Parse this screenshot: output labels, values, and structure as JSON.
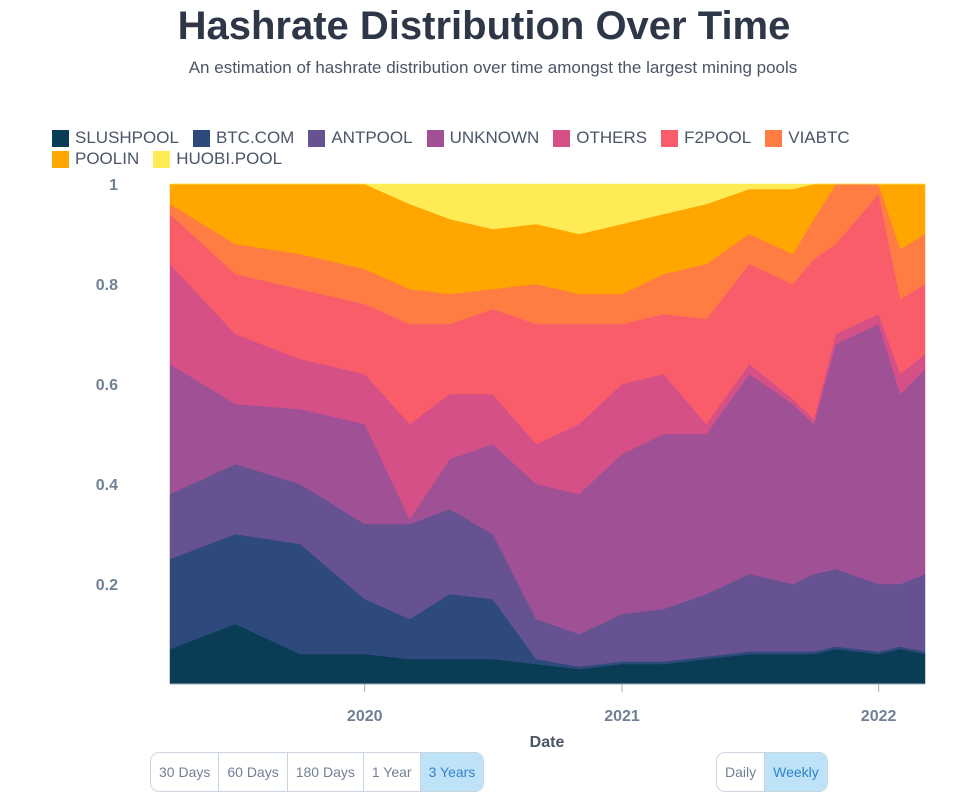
{
  "title": "Hashrate Distribution Over Time",
  "subtitle": "An estimation of hashrate distribution over time amongst the largest mining pools",
  "range_buttons": [
    {
      "label": "30 Days",
      "active": false
    },
    {
      "label": "60 Days",
      "active": false
    },
    {
      "label": "180 Days",
      "active": false
    },
    {
      "label": "1 Year",
      "active": false
    },
    {
      "label": "3 Years",
      "active": true
    }
  ],
  "interval_buttons": [
    {
      "label": "Daily",
      "active": false
    },
    {
      "label": "Weekly",
      "active": true
    }
  ],
  "chart_data": {
    "type": "area",
    "stacked": true,
    "xlabel": "Date",
    "ylabel": "",
    "ylim": [
      0,
      1
    ],
    "yticks": [
      "0.2",
      "0.4",
      "0.6",
      "0.8",
      "1"
    ],
    "ytick_values": [
      0.2,
      0.4,
      0.6,
      0.8,
      1
    ],
    "xticks": [
      "2020",
      "2021",
      "2022"
    ],
    "xtick_dates": [
      "2020-01-01",
      "2021-01-01",
      "2022-01-01"
    ],
    "grid": false,
    "legend_position": "top-left",
    "x": [
      "2019-03-30",
      "2019-07-01",
      "2019-10-01",
      "2020-01-01",
      "2020-03-05",
      "2020-05-01",
      "2020-07-01",
      "2020-09-01",
      "2020-11-01",
      "2021-01-01",
      "2021-03-01",
      "2021-05-01",
      "2021-07-01",
      "2021-09-01",
      "2021-10-01",
      "2021-11-01",
      "2022-01-01",
      "2022-02-01",
      "2022-03-08"
    ],
    "series": [
      {
        "name": "SLUSHPOOL",
        "color": "#0b3c56",
        "values": [
          0.07,
          0.12,
          0.06,
          0.06,
          0.05,
          0.05,
          0.05,
          0.04,
          0.03,
          0.04,
          0.04,
          0.05,
          0.06,
          0.06,
          0.06,
          0.07,
          0.06,
          0.07,
          0.06
        ]
      },
      {
        "name": "BTC.COM",
        "color": "#2e4a7d",
        "values": [
          0.18,
          0.18,
          0.22,
          0.11,
          0.08,
          0.13,
          0.12,
          0.01,
          0.005,
          0.005,
          0.005,
          0.005,
          0.005,
          0.005,
          0.005,
          0.005,
          0.005,
          0.005,
          0.005
        ]
      },
      {
        "name": "ANTPOOL",
        "color": "#665191",
        "values": [
          0.13,
          0.14,
          0.12,
          0.15,
          0.19,
          0.17,
          0.13,
          0.08,
          0.065,
          0.095,
          0.105,
          0.125,
          0.155,
          0.135,
          0.155,
          0.155,
          0.135,
          0.125,
          0.155
        ]
      },
      {
        "name": "UNKNOWN",
        "color": "#a05195",
        "values": [
          0.26,
          0.12,
          0.15,
          0.2,
          0.01,
          0.1,
          0.18,
          0.27,
          0.28,
          0.32,
          0.35,
          0.32,
          0.4,
          0.36,
          0.3,
          0.45,
          0.52,
          0.38,
          0.41
        ]
      },
      {
        "name": "OTHERS",
        "color": "#d45087",
        "values": [
          0.2,
          0.14,
          0.1,
          0.1,
          0.19,
          0.13,
          0.1,
          0.08,
          0.14,
          0.14,
          0.12,
          0.02,
          0.02,
          0.01,
          0.01,
          0.02,
          0.02,
          0.04,
          0.03
        ]
      },
      {
        "name": "F2POOL",
        "color": "#f95d6a",
        "values": [
          0.1,
          0.12,
          0.14,
          0.14,
          0.2,
          0.14,
          0.17,
          0.24,
          0.2,
          0.12,
          0.12,
          0.21,
          0.2,
          0.23,
          0.32,
          0.18,
          0.24,
          0.15,
          0.14
        ]
      },
      {
        "name": "VIABTC",
        "color": "#ff7c43",
        "values": [
          0.02,
          0.06,
          0.07,
          0.07,
          0.07,
          0.06,
          0.04,
          0.08,
          0.06,
          0.06,
          0.08,
          0.11,
          0.06,
          0.06,
          0.08,
          0.12,
          0.02,
          0.1,
          0.1
        ]
      },
      {
        "name": "POOLIN",
        "color": "#ffa600",
        "values": [
          0.04,
          0.12,
          0.14,
          0.17,
          0.17,
          0.15,
          0.12,
          0.12,
          0.12,
          0.14,
          0.12,
          0.12,
          0.09,
          0.13,
          0.07,
          0,
          0,
          0.13,
          0.1
        ]
      },
      {
        "name": "HUOBI.POOL",
        "color": "#ffeb55",
        "values": [
          0,
          0,
          0,
          0,
          0.04,
          0.07,
          0.09,
          0.08,
          0.1,
          0.08,
          0.06,
          0.04,
          0.01,
          0.01,
          0,
          0,
          0,
          0,
          0
        ]
      }
    ]
  }
}
